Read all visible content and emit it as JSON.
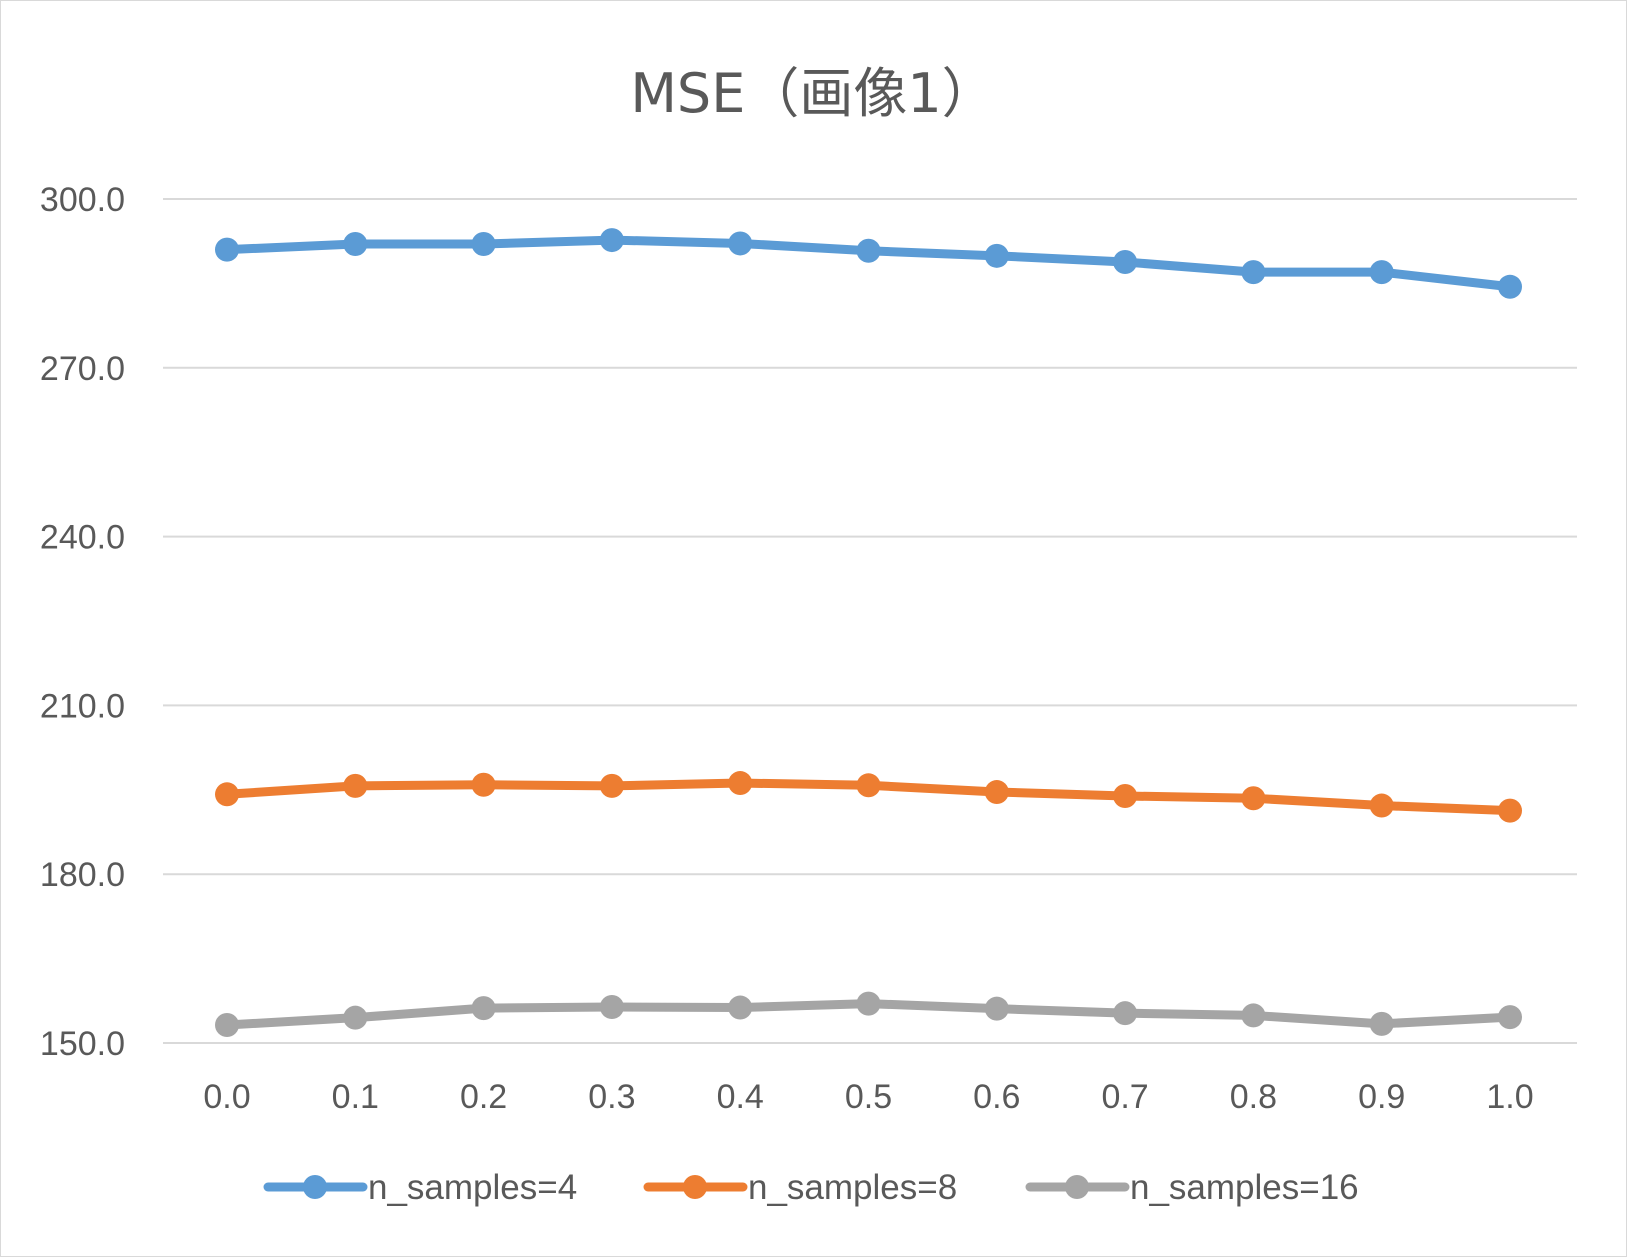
{
  "chart_data": {
    "type": "line",
    "title": "MSE（画像1）",
    "xlabel": "",
    "ylabel": "",
    "categories": [
      "0.0",
      "0.1",
      "0.2",
      "0.3",
      "0.4",
      "0.5",
      "0.6",
      "0.7",
      "0.8",
      "0.9",
      "1.0"
    ],
    "ylim": [
      150.0,
      300.0
    ],
    "yticks": [
      "150.0",
      "180.0",
      "210.0",
      "240.0",
      "270.0",
      "300.0"
    ],
    "grid": true,
    "legend_position": "bottom",
    "series": [
      {
        "name": "n_samples=4",
        "color": "#5B9BD5",
        "values": [
          291.0,
          292.0,
          292.0,
          292.7,
          292.1,
          290.8,
          289.9,
          288.8,
          287.0,
          287.0,
          284.4
        ]
      },
      {
        "name": "n_samples=8",
        "color": "#ED7D31",
        "values": [
          194.2,
          195.7,
          195.9,
          195.7,
          196.2,
          195.8,
          194.6,
          193.9,
          193.5,
          192.2,
          191.3
        ]
      },
      {
        "name": "n_samples=16",
        "color": "#A5A5A5",
        "values": [
          153.2,
          154.5,
          156.2,
          156.4,
          156.3,
          157.0,
          156.1,
          155.3,
          154.9,
          153.4,
          154.6
        ]
      }
    ]
  }
}
